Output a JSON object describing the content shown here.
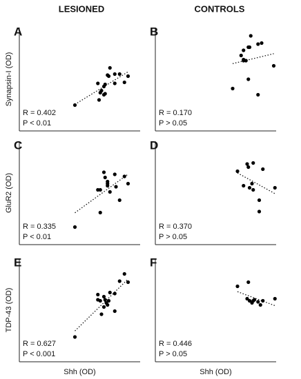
{
  "header": {
    "left": "LESIONED",
    "right": "CONTROLS"
  },
  "chart_data": [
    {
      "type": "scatter",
      "panel": "A",
      "ylabel": "Synapsin-I (OD)",
      "annotations": [
        "R = 0.402",
        "P < 0.01"
      ],
      "color": "#000000",
      "trendline": true,
      "xlim": [
        0,
        100
      ],
      "ylim": [
        0,
        100
      ],
      "x": [
        46,
        65,
        66,
        68,
        70,
        71,
        71,
        73,
        74,
        75,
        79,
        79,
        83,
        87,
        90,
        70,
        67
      ],
      "y": [
        25,
        46,
        30,
        39,
        43,
        36,
        45,
        54,
        53,
        61,
        46,
        55,
        55,
        47,
        53,
        35,
        37
      ]
    },
    {
      "type": "scatter",
      "panel": "B",
      "annotations": [
        "R = 0.170",
        "P > 0.05"
      ],
      "color": "#000000",
      "trendline": true,
      "xlim": [
        0,
        100
      ],
      "ylim": [
        0,
        100
      ],
      "x": [
        79,
        77,
        78,
        73,
        85,
        88,
        71,
        73,
        75,
        98,
        77,
        64,
        85,
        73
      ],
      "y": [
        92,
        81,
        81,
        78,
        84,
        85,
        73,
        69,
        68,
        63,
        50,
        41,
        35,
        68
      ]
    },
    {
      "type": "scatter",
      "panel": "C",
      "ylabel": "GluR2 (OD)",
      "annotations": [
        "R = 0.335",
        "P < 0.01"
      ],
      "color": "#000000",
      "trendline": true,
      "xlim": [
        0,
        100
      ],
      "ylim": [
        0,
        100
      ],
      "x": [
        46,
        67,
        65,
        67,
        70,
        71,
        73,
        73,
        75,
        79,
        80,
        83,
        87,
        90,
        73
      ],
      "y": [
        17,
        31,
        53,
        53,
        70,
        65,
        59,
        57,
        51,
        68,
        56,
        43,
        66,
        59,
        61
      ]
    },
    {
      "type": "scatter",
      "panel": "D",
      "annotations": [
        "R = 0.370",
        "P > 0.05"
      ],
      "color": "#000000",
      "trendline": true,
      "xlim": [
        0,
        100
      ],
      "ylim": [
        0,
        100
      ],
      "x": [
        68,
        76,
        81,
        77,
        89,
        73,
        78,
        81,
        80,
        99,
        86,
        86
      ],
      "y": [
        71,
        78,
        79,
        75,
        73,
        57,
        55,
        53,
        59,
        55,
        43,
        32
      ]
    },
    {
      "type": "scatter",
      "panel": "E",
      "ylabel": "TDP-43 (OD)",
      "xlabel": "Shh (OD)",
      "annotations": [
        "R = 0.627",
        "P < 0.001"
      ],
      "color": "#000000",
      "trendline": true,
      "xlim": [
        0,
        100
      ],
      "ylim": [
        0,
        100
      ],
      "x": [
        46,
        68,
        70,
        65,
        70,
        72,
        73,
        74,
        75,
        79,
        79,
        83,
        87,
        90,
        71,
        67,
        65
      ],
      "y": [
        24,
        46,
        53,
        65,
        63,
        57,
        55,
        59,
        67,
        66,
        49,
        78,
        85,
        77,
        60,
        59,
        60
      ]
    },
    {
      "type": "scatter",
      "panel": "F",
      "xlabel": "Shh (OD)",
      "annotations": [
        "R = 0.446",
        "P > 0.05"
      ],
      "color": "#000000",
      "trendline": true,
      "xlim": [
        0,
        100
      ],
      "ylim": [
        0,
        100
      ],
      "x": [
        68,
        77,
        76,
        78,
        81,
        82,
        80,
        87,
        89,
        99,
        85
      ],
      "y": [
        73,
        77,
        61,
        59,
        59,
        60,
        57,
        55,
        59,
        61,
        58
      ]
    }
  ]
}
